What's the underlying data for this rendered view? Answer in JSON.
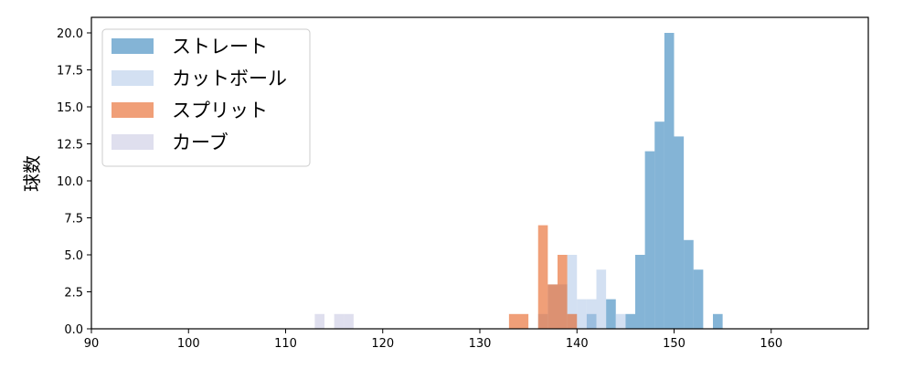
{
  "chart_data": {
    "type": "bar",
    "subtype": "histogram",
    "title": "",
    "xlabel": "",
    "ylabel": "球数",
    "xlim": [
      90,
      170
    ],
    "ylim": [
      0,
      21.05
    ],
    "xticks": [
      "90",
      "100",
      "110",
      "120",
      "130",
      "140",
      "150",
      "160"
    ],
    "yticks": [
      "0.0",
      "2.5",
      "5.0",
      "7.5",
      "10.0",
      "12.5",
      "15.0",
      "17.5",
      "20.0"
    ],
    "grid": false,
    "legend_position": "top-left",
    "bin_width": 1,
    "series": [
      {
        "name": "ストレート",
        "color": "#1f77b4",
        "bins": [
          [
            141,
            1
          ],
          [
            143,
            2
          ],
          [
            145,
            1
          ],
          [
            146,
            5
          ],
          [
            147,
            12
          ],
          [
            148,
            14
          ],
          [
            149,
            20
          ],
          [
            150,
            13
          ],
          [
            151,
            6
          ],
          [
            152,
            4
          ],
          [
            154,
            1
          ]
        ]
      },
      {
        "name": "カットボール",
        "color": "#aec7e8",
        "bins": [
          [
            136,
            1
          ],
          [
            137,
            3
          ],
          [
            138,
            3
          ],
          [
            139,
            5
          ],
          [
            140,
            2
          ],
          [
            141,
            2
          ],
          [
            142,
            4
          ],
          [
            144,
            1
          ]
        ]
      },
      {
        "name": "スプリット",
        "color": "#e4500a",
        "bins": [
          [
            133,
            1
          ],
          [
            134,
            1
          ],
          [
            136,
            7
          ],
          [
            137,
            3
          ],
          [
            138,
            5
          ],
          [
            139,
            1
          ]
        ]
      },
      {
        "name": "カーブ",
        "color": "#c5c5e0",
        "bins": [
          [
            113,
            1
          ],
          [
            115,
            1
          ],
          [
            116,
            1
          ]
        ]
      }
    ]
  }
}
